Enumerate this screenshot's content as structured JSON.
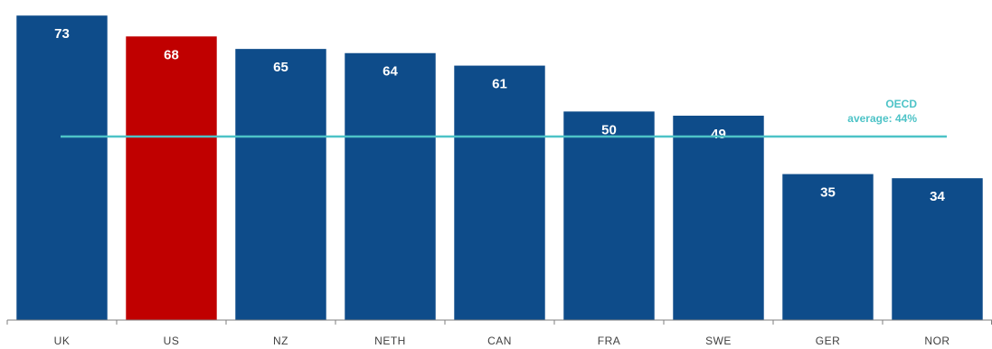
{
  "chart_data": {
    "type": "bar",
    "categories": [
      "UK",
      "US",
      "NZ",
      "NETH",
      "CAN",
      "FRA",
      "SWE",
      "GER",
      "NOR"
    ],
    "values": [
      73,
      68,
      65,
      64,
      61,
      50,
      49,
      35,
      34
    ],
    "highlight_category": "US",
    "colors": {
      "bar": "#0E4C8A",
      "highlight": "#C00000",
      "average_line": "#4DC3C7",
      "axis": "#7F7F7F"
    },
    "reference_line": {
      "value": 44,
      "label_line1": "OECD",
      "label_line2": "average: 44%"
    },
    "ylim": [
      0,
      75
    ],
    "grid": false,
    "legend": "none"
  }
}
